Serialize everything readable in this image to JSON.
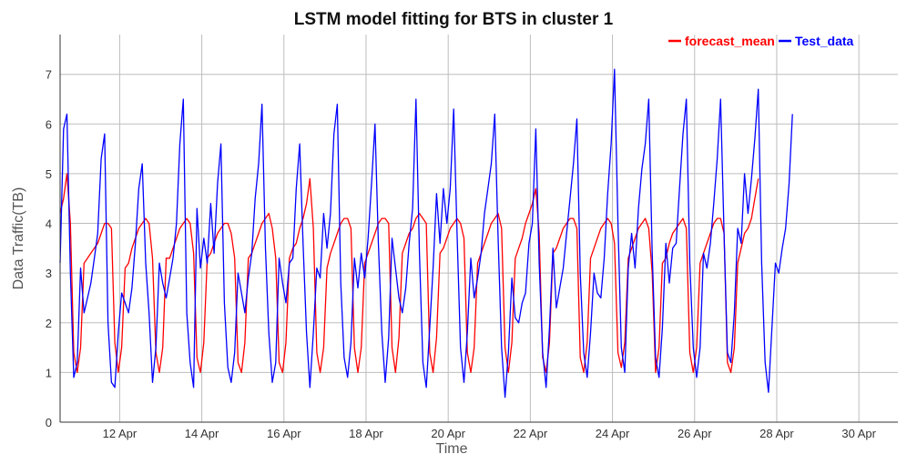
{
  "chart_data": {
    "type": "line",
    "title": "LSTM model fitting for BTS in cluster 1",
    "xlabel": "Time",
    "ylabel": "Data Traffic(TB)",
    "xlim": [
      "Apr 10 13:00",
      "Apr 30 23:00"
    ],
    "ylim": [
      0,
      7.8
    ],
    "x_ticks": [
      "12 Apr",
      "14 Apr",
      "16 Apr",
      "18 Apr",
      "20 Apr",
      "22 Apr",
      "24 Apr",
      "26 Apr",
      "28 Apr",
      "30 Apr"
    ],
    "y_ticks": [
      0,
      1,
      2,
      3,
      4,
      5,
      6,
      7
    ],
    "x_tick_days": [
      12,
      14,
      16,
      18,
      20,
      22,
      24,
      26,
      28,
      30
    ],
    "x_start_day": 10.55,
    "x_end_day": 30.95,
    "sample_hours": 2,
    "grid": true,
    "legend_position": "top-right",
    "colors": {
      "forecast_mean": "#ff0000",
      "Test_data": "#0000ff"
    },
    "series": [
      {
        "name": "forecast_mean",
        "color": "#ff0000",
        "values": [
          4.2,
          4.5,
          5.0,
          4.0,
          1.4,
          1.0,
          1.5,
          3.2,
          3.3,
          3.4,
          3.5,
          3.6,
          3.8,
          4.0,
          4.0,
          3.9,
          1.6,
          1.0,
          1.5,
          3.1,
          3.2,
          3.5,
          3.7,
          3.9,
          4.0,
          4.1,
          4.0,
          3.3,
          1.4,
          1.0,
          1.5,
          3.3,
          3.3,
          3.5,
          3.7,
          3.9,
          4.0,
          4.1,
          4.0,
          3.4,
          1.3,
          1.0,
          1.6,
          3.3,
          3.4,
          3.6,
          3.8,
          3.9,
          4.0,
          4.0,
          3.8,
          3.3,
          1.2,
          1.0,
          1.6,
          3.3,
          3.4,
          3.6,
          3.8,
          4.0,
          4.1,
          4.2,
          3.9,
          3.3,
          1.2,
          1.0,
          1.6,
          3.3,
          3.5,
          3.6,
          3.9,
          4.1,
          4.4,
          4.9,
          3.9,
          1.4,
          1.0,
          1.5,
          3.1,
          3.4,
          3.6,
          3.8,
          4.0,
          4.1,
          4.1,
          3.9,
          1.5,
          1.0,
          1.5,
          3.2,
          3.4,
          3.6,
          3.8,
          4.0,
          4.1,
          4.1,
          4.0,
          1.5,
          1.0,
          1.7,
          3.4,
          3.6,
          3.8,
          3.9,
          4.1,
          4.2,
          4.1,
          4.0,
          1.4,
          1.0,
          1.7,
          3.4,
          3.5,
          3.7,
          3.9,
          4.0,
          4.1,
          4.0,
          3.7,
          1.4,
          1.0,
          1.5,
          3.2,
          3.4,
          3.6,
          3.8,
          4.0,
          4.1,
          4.2,
          3.9,
          1.5,
          1.0,
          1.6,
          3.3,
          3.5,
          3.7,
          4.0,
          4.2,
          4.4,
          4.7,
          3.8,
          1.3,
          1.0,
          1.6,
          3.4,
          3.5,
          3.7,
          3.9,
          4.0,
          4.1,
          4.1,
          3.9,
          1.3,
          1.0,
          1.6,
          3.3,
          3.5,
          3.7,
          3.9,
          4.0,
          4.1,
          4.0,
          3.6,
          1.4,
          1.1,
          1.6,
          3.3,
          3.5,
          3.7,
          3.9,
          4.0,
          4.1,
          3.9,
          3.0,
          1.0,
          1.5,
          3.2,
          3.3,
          3.6,
          3.8,
          3.9,
          4.0,
          4.1,
          3.9,
          1.4,
          1.0,
          1.5,
          3.2,
          3.4,
          3.6,
          3.8,
          4.0,
          4.1,
          4.1,
          3.8,
          1.2,
          1.0,
          1.5,
          3.2,
          3.5,
          3.8,
          3.9,
          4.1,
          4.5,
          4.9
        ]
      },
      {
        "name": "Test_data",
        "color": "#0000ff",
        "values": [
          3.2,
          5.9,
          6.2,
          3.0,
          0.9,
          1.2,
          3.1,
          2.2,
          2.5,
          2.8,
          3.3,
          3.8,
          5.3,
          5.8,
          2.0,
          0.8,
          0.7,
          1.8,
          2.6,
          2.4,
          2.2,
          2.7,
          3.6,
          4.7,
          5.2,
          3.2,
          2.2,
          0.8,
          1.5,
          3.2,
          2.8,
          2.5,
          2.9,
          3.3,
          4.0,
          5.6,
          6.5,
          2.2,
          1.2,
          0.7,
          4.3,
          3.1,
          3.7,
          3.2,
          4.4,
          3.4,
          4.8,
          5.6,
          2.4,
          1.1,
          0.8,
          1.4,
          3.0,
          2.6,
          2.2,
          2.9,
          3.4,
          4.5,
          5.2,
          6.4,
          3.5,
          1.8,
          0.8,
          1.2,
          3.3,
          2.8,
          2.4,
          3.2,
          3.3,
          4.7,
          5.6,
          3.6,
          1.8,
          0.7,
          1.8,
          3.1,
          2.9,
          4.2,
          3.5,
          4.2,
          5.8,
          6.4,
          2.8,
          1.3,
          0.9,
          1.6,
          3.3,
          2.7,
          3.4,
          2.9,
          3.7,
          4.8,
          6.0,
          3.6,
          1.8,
          0.8,
          1.7,
          3.7,
          3.1,
          2.5,
          2.2,
          2.7,
          3.6,
          4.3,
          6.5,
          3.4,
          1.2,
          0.7,
          1.9,
          3.1,
          4.6,
          3.6,
          4.7,
          4.0,
          4.7,
          6.3,
          3.8,
          1.5,
          0.8,
          1.8,
          3.3,
          2.5,
          2.9,
          3.4,
          4.2,
          4.7,
          5.2,
          6.2,
          3.7,
          1.5,
          0.5,
          1.4,
          2.9,
          2.1,
          2.0,
          2.4,
          2.6,
          3.6,
          4.0,
          5.9,
          3.2,
          1.4,
          0.7,
          1.9,
          3.5,
          2.3,
          2.7,
          3.1,
          3.8,
          4.5,
          5.2,
          6.1,
          3.0,
          1.4,
          0.9,
          1.8,
          3.0,
          2.6,
          2.5,
          3.3,
          4.6,
          5.6,
          7.1,
          4.0,
          1.5,
          1.0,
          3.1,
          3.8,
          3.1,
          4.3,
          5.1,
          5.6,
          6.5,
          3.4,
          1.3,
          0.9,
          1.9,
          3.6,
          2.8,
          3.5,
          3.6,
          4.7,
          5.8,
          6.5,
          3.2,
          1.5,
          0.9,
          1.5,
          3.4,
          3.1,
          3.6,
          4.4,
          5.3,
          6.5,
          3.8,
          1.4,
          1.2,
          2.2,
          3.9,
          3.6,
          5.0,
          4.2,
          4.9,
          5.7,
          6.7,
          3.2,
          1.2,
          0.6,
          1.9,
          3.2,
          3.0,
          3.5,
          3.9,
          4.8,
          6.2
        ]
      }
    ]
  }
}
